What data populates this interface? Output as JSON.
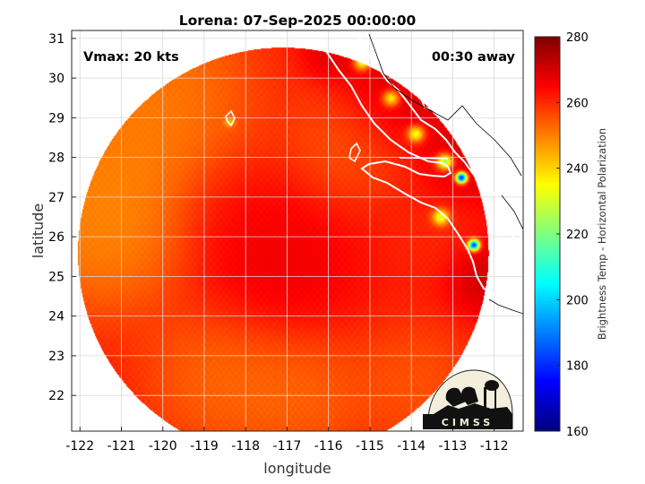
{
  "chart_data": {
    "type": "heatmap",
    "title": "Lorena: 07-Sep-2025 00:00:00",
    "xlabel": "longitude",
    "ylabel": "latitude",
    "xlim": [
      -122.2,
      -111.3
    ],
    "ylim": [
      21.1,
      31.2
    ],
    "x_ticks": [
      -122,
      -121,
      -120,
      -119,
      -118,
      -117,
      -116,
      -115,
      -114,
      -113,
      -112
    ],
    "y_ticks": [
      22,
      23,
      24,
      25,
      26,
      27,
      28,
      29,
      30,
      31
    ],
    "grid": true,
    "annotations": {
      "vmax": "Vmax: 20 kts",
      "time_offset": "00:30 away"
    },
    "colorbar": {
      "label": "Brightness Temp - Horizontal Polarization",
      "range": [
        160,
        280
      ],
      "ticks": [
        160,
        180,
        200,
        220,
        240,
        260,
        280
      ],
      "colormap": "jet"
    },
    "swath": {
      "center": [
        -117.1,
        25.6
      ],
      "radius_deg": 5.4,
      "base_temp": 262
    },
    "features": [
      {
        "lon": -117.4,
        "lat": 25.2,
        "temp": 270,
        "r": 1.6
      },
      {
        "lon": -118.3,
        "lat": 26.6,
        "temp": 266,
        "r": 1.2
      },
      {
        "lon": -121.0,
        "lat": 28.0,
        "temp": 246,
        "r": 2.2
      },
      {
        "lon": -121.5,
        "lat": 26.2,
        "temp": 244,
        "r": 1.8
      },
      {
        "lon": -120.0,
        "lat": 29.8,
        "temp": 247,
        "r": 1.8
      },
      {
        "lon": -118.5,
        "lat": 22.5,
        "temp": 248,
        "r": 1.6
      },
      {
        "lon": -116.6,
        "lat": 22.0,
        "temp": 250,
        "r": 1.3
      },
      {
        "lon": -114.0,
        "lat": 22.3,
        "temp": 252,
        "r": 1.3
      },
      {
        "lon": -115.5,
        "lat": 28.5,
        "temp": 252,
        "r": 1.3
      },
      {
        "lon": -113.4,
        "lat": 26.0,
        "temp": 260,
        "r": 1.0
      },
      {
        "lon": -115.9,
        "lat": 30.6,
        "temp": 272,
        "r": 0.6
      },
      {
        "lon": -114.4,
        "lat": 29.6,
        "temp": 276,
        "r": 1.2
      },
      {
        "lon": -112.5,
        "lat": 28.0,
        "temp": 274,
        "r": 1.0
      },
      {
        "lon": -112.2,
        "lat": 25.0,
        "temp": 276,
        "r": 0.8
      }
    ],
    "hot_spots": [
      {
        "lon": -112.8,
        "lat": 27.5,
        "temp": 180,
        "r": 0.13
      },
      {
        "lon": -112.5,
        "lat": 25.8,
        "temp": 182,
        "r": 0.13
      },
      {
        "lon": -113.2,
        "lat": 27.9,
        "temp": 226,
        "r": 0.2
      },
      {
        "lon": -113.3,
        "lat": 26.5,
        "temp": 232,
        "r": 0.2
      },
      {
        "lon": -113.9,
        "lat": 28.6,
        "temp": 234,
        "r": 0.2
      },
      {
        "lon": -115.2,
        "lat": 30.4,
        "temp": 236,
        "r": 0.2
      },
      {
        "lon": -114.5,
        "lat": 29.5,
        "temp": 238,
        "r": 0.2
      },
      {
        "lon": -118.4,
        "lat": 28.9,
        "temp": 242,
        "r": 0.12
      }
    ]
  },
  "logo": {
    "text": "CIMSS"
  }
}
